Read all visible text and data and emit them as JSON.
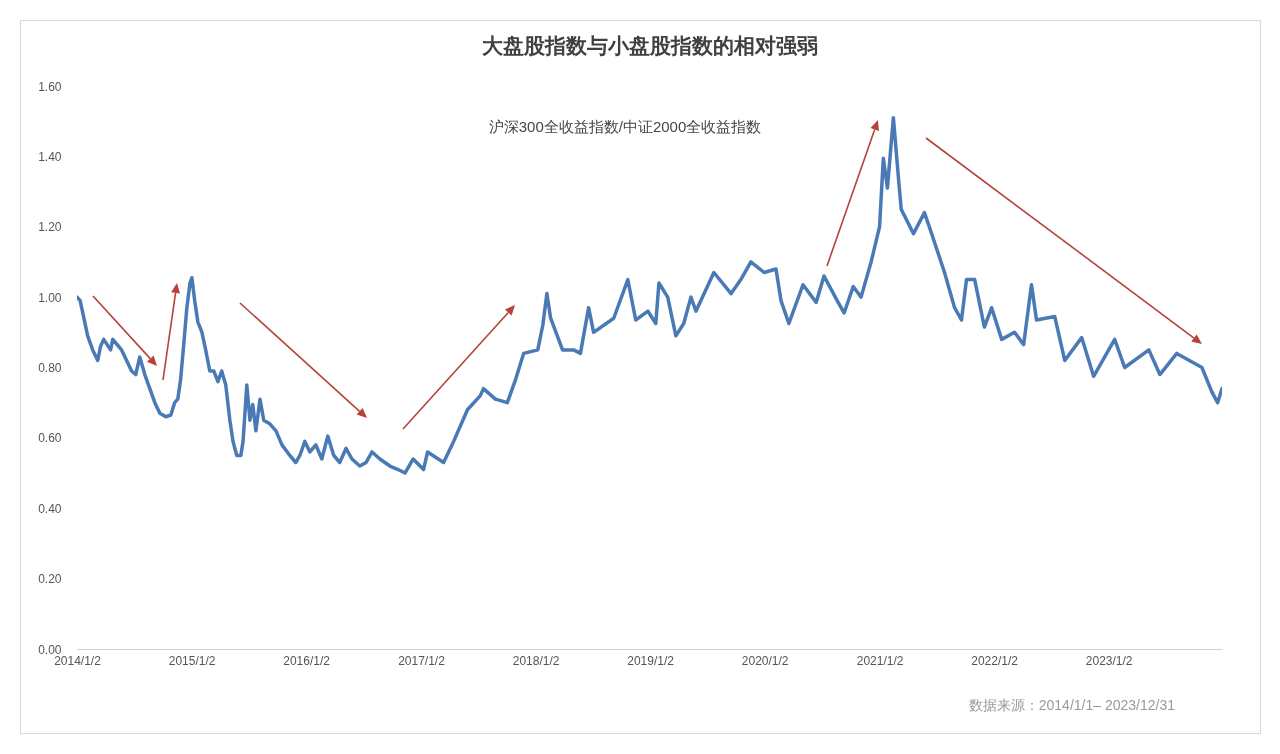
{
  "chart_data": {
    "type": "line",
    "title": "大盘股指数与小盘股指数的相对强弱",
    "subtitle": "沪深300全收益指数/中证2000全收益指数",
    "annotations": [
      "数据来源：2014/1/1– 2023/12/31"
    ],
    "xlim": [
      "2014-01-02",
      "2023-12-29"
    ],
    "xticks": [
      {
        "value": "2014-01-02",
        "label": "2014/1/2"
      },
      {
        "value": "2015-01-02",
        "label": "2015/1/2"
      },
      {
        "value": "2016-01-02",
        "label": "2016/1/2"
      },
      {
        "value": "2017-01-02",
        "label": "2017/1/2"
      },
      {
        "value": "2018-01-02",
        "label": "2018/1/2"
      },
      {
        "value": "2019-01-02",
        "label": "2019/1/2"
      },
      {
        "value": "2020-01-02",
        "label": "2020/1/2"
      },
      {
        "value": "2021-01-02",
        "label": "2021/1/2"
      },
      {
        "value": "2022-01-02",
        "label": "2022/1/2"
      },
      {
        "value": "2023-01-02",
        "label": "2023/1/2"
      }
    ],
    "ylim": [
      0,
      1.6
    ],
    "yticks": [
      {
        "value": 0,
        "label": "0.00"
      },
      {
        "value": 0.2,
        "label": "0.20"
      },
      {
        "value": 0.4,
        "label": "0.40"
      },
      {
        "value": 0.6,
        "label": "0.60"
      },
      {
        "value": 0.8,
        "label": "0.80"
      },
      {
        "value": 1,
        "label": "1.00"
      },
      {
        "value": 1.2,
        "label": "1.20"
      },
      {
        "value": 1.4,
        "label": "1.40"
      },
      {
        "value": 1.6,
        "label": "1.60"
      }
    ],
    "x": [
      "2014-01-02",
      "2014-01-12",
      "2014-01-24",
      "2014-02-05",
      "2014-02-21",
      "2014-03-09",
      "2014-03-18",
      "2014-03-28",
      "2014-04-19",
      "2014-04-26",
      "2014-05-24",
      "2014-06-25",
      "2014-07-08",
      "2014-07-21",
      "2014-08-06",
      "2014-08-22",
      "2014-09-07",
      "2014-09-23",
      "2014-10-12",
      "2014-10-28",
      "2014-11-09",
      "2014-11-19",
      "2014-11-28",
      "2014-12-08",
      "2014-12-18",
      "2014-12-28",
      "2015-01-03",
      "2015-01-12",
      "2015-01-22",
      "2015-02-04",
      "2015-02-16",
      "2015-03-01",
      "2015-03-14",
      "2015-03-27",
      "2015-04-08",
      "2015-04-21",
      "2015-05-04",
      "2015-05-14",
      "2015-05-26",
      "2015-06-08",
      "2015-06-15",
      "2015-06-27",
      "2015-07-07",
      "2015-07-16",
      "2015-07-26",
      "2015-08-08",
      "2015-08-20",
      "2015-09-08",
      "2015-09-28",
      "2015-10-17",
      "2015-11-11",
      "2015-11-30",
      "2015-12-13",
      "2015-12-29",
      "2016-01-14",
      "2016-02-02",
      "2016-02-21",
      "2016-03-11",
      "2016-03-30",
      "2016-04-18",
      "2016-05-08",
      "2016-05-27",
      "2016-06-21",
      "2016-07-11",
      "2016-07-30",
      "2016-08-24",
      "2016-09-25",
      "2016-10-21",
      "2016-11-12",
      "2016-12-08",
      "2017-01-10",
      "2017-01-23",
      "2017-03-15",
      "2017-04-16",
      "2017-05-30",
      "2017-07-10",
      "2017-07-20",
      "2017-08-27",
      "2017-10-04",
      "2017-10-30",
      "2017-11-25",
      "2018-01-09",
      "2018-01-25",
      "2018-02-07",
      "2018-02-19",
      "2018-03-29",
      "2018-05-03",
      "2018-05-25",
      "2018-06-20",
      "2018-07-06",
      "2018-09-08",
      "2018-10-23",
      "2018-11-17",
      "2018-12-26",
      "2019-01-20",
      "2019-01-30",
      "2019-02-27",
      "2019-03-25",
      "2019-04-19",
      "2019-05-12",
      "2019-05-28",
      "2019-07-24",
      "2019-09-17",
      "2019-10-18",
      "2019-11-19",
      "2019-12-31",
      "2020-02-07",
      "2020-02-23",
      "2020-03-19",
      "2020-05-03",
      "2020-06-14",
      "2020-07-09",
      "2020-08-23",
      "2020-09-11",
      "2020-10-10",
      "2020-11-04",
      "2020-12-06",
      "2021-01-02",
      "2021-01-14",
      "2021-01-27",
      "2021-02-15",
      "2021-03-03",
      "2021-03-12",
      "2021-04-20",
      "2021-05-25",
      "2021-06-17",
      "2021-07-28",
      "2021-08-29",
      "2021-09-20",
      "2021-10-06",
      "2021-11-01",
      "2021-12-02",
      "2021-12-25",
      "2022-01-26",
      "2022-03-08",
      "2022-04-06",
      "2022-05-01",
      "2022-05-17",
      "2022-07-14",
      "2022-08-15",
      "2022-10-08",
      "2022-11-15",
      "2023-01-21",
      "2023-02-22",
      "2023-05-10",
      "2023-06-14",
      "2023-08-07",
      "2023-10-26",
      "2023-11-27",
      "2023-12-15",
      "2023-12-29"
    ],
    "series": [
      {
        "color": "#4a7ab5",
        "values": [
          1.0,
          0.99,
          0.94,
          0.89,
          0.85,
          0.82,
          0.86,
          0.88,
          0.85,
          0.88,
          0.85,
          0.79,
          0.78,
          0.83,
          0.78,
          0.74,
          0.7,
          0.67,
          0.66,
          0.665,
          0.7,
          0.71,
          0.765,
          0.865,
          0.97,
          1.04,
          1.055,
          0.99,
          0.93,
          0.9,
          0.85,
          0.79,
          0.79,
          0.76,
          0.79,
          0.75,
          0.65,
          0.59,
          0.55,
          0.55,
          0.59,
          0.75,
          0.65,
          0.695,
          0.62,
          0.71,
          0.65,
          0.64,
          0.62,
          0.58,
          0.55,
          0.53,
          0.55,
          0.59,
          0.56,
          0.58,
          0.54,
          0.605,
          0.55,
          0.53,
          0.57,
          0.54,
          0.52,
          0.53,
          0.56,
          0.54,
          0.52,
          0.51,
          0.5,
          0.54,
          0.51,
          0.56,
          0.53,
          0.59,
          0.68,
          0.72,
          0.74,
          0.71,
          0.7,
          0.765,
          0.84,
          0.85,
          0.92,
          1.01,
          0.94,
          0.85,
          0.85,
          0.84,
          0.97,
          0.9,
          0.94,
          1.05,
          0.935,
          0.96,
          0.925,
          1.04,
          1.0,
          0.89,
          0.925,
          1.0,
          0.96,
          1.07,
          1.01,
          1.05,
          1.1,
          1.07,
          1.08,
          0.99,
          0.925,
          1.035,
          0.985,
          1.06,
          0.985,
          0.955,
          1.03,
          1.0,
          1.1,
          1.2,
          1.395,
          1.31,
          1.51,
          1.34,
          1.25,
          1.18,
          1.24,
          1.18,
          1.07,
          0.97,
          0.935,
          1.05,
          1.05,
          0.915,
          0.97,
          0.88,
          0.9,
          0.865,
          1.035,
          0.935,
          0.945,
          0.82,
          0.885,
          0.775,
          0.88,
          0.8,
          0.85,
          0.78,
          0.84,
          0.8,
          0.73,
          0.7,
          0.74
        ]
      }
    ]
  }
}
